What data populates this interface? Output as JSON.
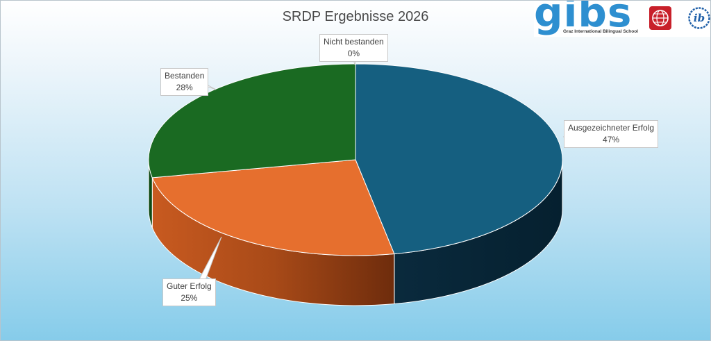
{
  "chart_data": {
    "type": "pie",
    "title": "SRDP Ergebnisse 2026",
    "slices": [
      {
        "label": "Ausgezeichneter Erfolg",
        "value": 47,
        "value_label": "47%",
        "color": "#155f80"
      },
      {
        "label": "Guter Erfolg",
        "value": 25,
        "value_label": "25%",
        "color": "#e66f2e"
      },
      {
        "label": "Bestanden",
        "value": 28,
        "value_label": "28%",
        "color": "#1a6a22"
      },
      {
        "label": "Nicht bestanden",
        "value": 0,
        "value_label": "0%",
        "color": "#a8a8a8"
      }
    ],
    "style": "3d-pie",
    "data_labels": "callout"
  },
  "logo": {
    "wordmark": "gibs",
    "subtitle": "Graz International Bilingual School",
    "ib_mark": "ib"
  }
}
